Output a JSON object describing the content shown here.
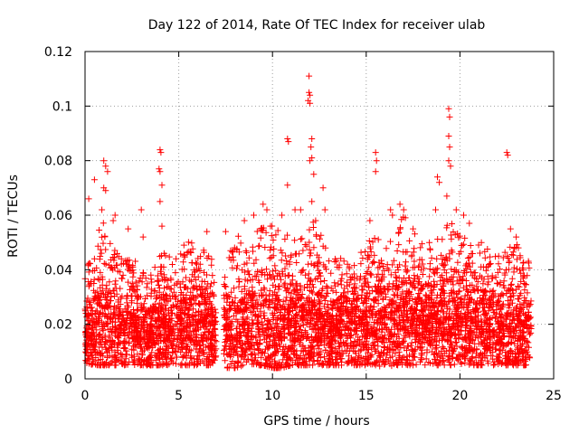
{
  "chart_data": {
    "type": "scatter",
    "title": "Day 122 of 2014, Rate Of TEC Index for receiver ulab",
    "xlabel": "GPS time / hours",
    "ylabel": "ROTI / TECUs",
    "xlim": [
      0,
      25
    ],
    "ylim": [
      0,
      0.12
    ],
    "xticks": [
      0,
      5,
      10,
      15,
      20,
      25
    ],
    "yticks": [
      0,
      0.02,
      0.04,
      0.06,
      0.08,
      0.1,
      0.12
    ],
    "xtick_labels": [
      "0",
      "5",
      "10",
      "15",
      "20",
      "25"
    ],
    "ytick_labels": [
      "0",
      "0.02",
      "0.04",
      "0.06",
      "0.08",
      "0.1",
      "0.12"
    ],
    "grid": true,
    "marker": "+",
    "color": "#ff0000",
    "data_gap_hours": [
      7.0,
      7.4
    ],
    "series": [
      {
        "name": "ROTI",
        "envelope": {
          "x": [
            0,
            0.5,
            1,
            1.5,
            2,
            2.5,
            3,
            3.5,
            4,
            4.5,
            5,
            5.5,
            6,
            6.5,
            7,
            7.5,
            8,
            8.5,
            9,
            9.5,
            10,
            10.5,
            11,
            11.5,
            12,
            12.5,
            13,
            13.5,
            14,
            14.5,
            15,
            15.5,
            16,
            16.5,
            17,
            17.5,
            18,
            18.5,
            19,
            19.5,
            20,
            20.5,
            21,
            21.5,
            22,
            22.5,
            23,
            23.5,
            23.8
          ],
          "lower": [
            0.006,
            0.005,
            0.005,
            0.005,
            0.005,
            0.005,
            0.005,
            0.005,
            0.005,
            0.005,
            0.005,
            0.005,
            0.005,
            0.005,
            0.005,
            0.004,
            0.004,
            0.005,
            0.005,
            0.005,
            0.004,
            0.004,
            0.005,
            0.005,
            0.005,
            0.005,
            0.005,
            0.005,
            0.005,
            0.005,
            0.005,
            0.005,
            0.004,
            0.005,
            0.005,
            0.005,
            0.005,
            0.005,
            0.005,
            0.005,
            0.005,
            0.005,
            0.005,
            0.005,
            0.005,
            0.005,
            0.005,
            0.005,
            0.006
          ],
          "upper": [
            0.045,
            0.05,
            0.06,
            0.05,
            0.045,
            0.045,
            0.042,
            0.04,
            0.05,
            0.045,
            0.05,
            0.052,
            0.05,
            0.05,
            0.04,
            0.05,
            0.055,
            0.05,
            0.052,
            0.06,
            0.06,
            0.055,
            0.055,
            0.055,
            0.06,
            0.055,
            0.045,
            0.045,
            0.045,
            0.045,
            0.05,
            0.052,
            0.05,
            0.055,
            0.06,
            0.055,
            0.05,
            0.05,
            0.055,
            0.06,
            0.055,
            0.05,
            0.05,
            0.05,
            0.045,
            0.048,
            0.05,
            0.045,
            0.045
          ],
          "median": [
            0.017,
            0.02,
            0.02,
            0.019,
            0.018,
            0.018,
            0.017,
            0.016,
            0.018,
            0.019,
            0.019,
            0.02,
            0.02,
            0.02,
            0.018,
            0.018,
            0.018,
            0.019,
            0.02,
            0.02,
            0.02,
            0.019,
            0.02,
            0.02,
            0.02,
            0.02,
            0.019,
            0.02,
            0.021,
            0.021,
            0.022,
            0.022,
            0.022,
            0.023,
            0.023,
            0.023,
            0.023,
            0.022,
            0.022,
            0.022,
            0.022,
            0.021,
            0.02,
            0.02,
            0.02,
            0.019,
            0.018,
            0.018,
            0.018
          ]
        },
        "spikes": [
          {
            "x": 0.2,
            "y": 0.066
          },
          {
            "x": 0.5,
            "y": 0.073
          },
          {
            "x": 1.0,
            "y": 0.08
          },
          {
            "x": 1.1,
            "y": 0.078
          },
          {
            "x": 1.2,
            "y": 0.076
          },
          {
            "x": 1.0,
            "y": 0.07
          },
          {
            "x": 1.1,
            "y": 0.069
          },
          {
            "x": 0.9,
            "y": 0.062
          },
          {
            "x": 1.6,
            "y": 0.06
          },
          {
            "x": 1.5,
            "y": 0.058
          },
          {
            "x": 2.3,
            "y": 0.055
          },
          {
            "x": 3.0,
            "y": 0.062
          },
          {
            "x": 3.1,
            "y": 0.052
          },
          {
            "x": 4.0,
            "y": 0.084
          },
          {
            "x": 4.05,
            "y": 0.083
          },
          {
            "x": 3.95,
            "y": 0.077
          },
          {
            "x": 4.0,
            "y": 0.076
          },
          {
            "x": 4.1,
            "y": 0.071
          },
          {
            "x": 4.0,
            "y": 0.065
          },
          {
            "x": 4.1,
            "y": 0.056
          },
          {
            "x": 6.5,
            "y": 0.054
          },
          {
            "x": 7.5,
            "y": 0.054
          },
          {
            "x": 8.5,
            "y": 0.058
          },
          {
            "x": 9.0,
            "y": 0.06
          },
          {
            "x": 9.5,
            "y": 0.064
          },
          {
            "x": 9.7,
            "y": 0.062
          },
          {
            "x": 10.5,
            "y": 0.06
          },
          {
            "x": 10.8,
            "y": 0.088
          },
          {
            "x": 10.85,
            "y": 0.087
          },
          {
            "x": 10.8,
            "y": 0.071
          },
          {
            "x": 11.2,
            "y": 0.062
          },
          {
            "x": 11.5,
            "y": 0.062
          },
          {
            "x": 11.95,
            "y": 0.111
          },
          {
            "x": 11.95,
            "y": 0.105
          },
          {
            "x": 12.0,
            "y": 0.104
          },
          {
            "x": 11.9,
            "y": 0.102
          },
          {
            "x": 12.0,
            "y": 0.101
          },
          {
            "x": 12.1,
            "y": 0.088
          },
          {
            "x": 12.05,
            "y": 0.085
          },
          {
            "x": 12.1,
            "y": 0.081
          },
          {
            "x": 12.0,
            "y": 0.08
          },
          {
            "x": 12.2,
            "y": 0.075
          },
          {
            "x": 12.1,
            "y": 0.065
          },
          {
            "x": 12.3,
            "y": 0.058
          },
          {
            "x": 12.7,
            "y": 0.07
          },
          {
            "x": 12.8,
            "y": 0.062
          },
          {
            "x": 15.5,
            "y": 0.083
          },
          {
            "x": 15.55,
            "y": 0.08
          },
          {
            "x": 15.5,
            "y": 0.076
          },
          {
            "x": 15.2,
            "y": 0.058
          },
          {
            "x": 16.3,
            "y": 0.062
          },
          {
            "x": 16.4,
            "y": 0.06
          },
          {
            "x": 16.8,
            "y": 0.064
          },
          {
            "x": 17.0,
            "y": 0.062
          },
          {
            "x": 17.5,
            "y": 0.055
          },
          {
            "x": 18.8,
            "y": 0.074
          },
          {
            "x": 18.9,
            "y": 0.072
          },
          {
            "x": 18.7,
            "y": 0.062
          },
          {
            "x": 19.4,
            "y": 0.099
          },
          {
            "x": 19.45,
            "y": 0.096
          },
          {
            "x": 19.4,
            "y": 0.089
          },
          {
            "x": 19.45,
            "y": 0.085
          },
          {
            "x": 19.4,
            "y": 0.08
          },
          {
            "x": 19.5,
            "y": 0.078
          },
          {
            "x": 19.3,
            "y": 0.067
          },
          {
            "x": 19.8,
            "y": 0.062
          },
          {
            "x": 20.2,
            "y": 0.06
          },
          {
            "x": 20.5,
            "y": 0.057
          },
          {
            "x": 22.5,
            "y": 0.083
          },
          {
            "x": 22.55,
            "y": 0.082
          },
          {
            "x": 22.7,
            "y": 0.055
          },
          {
            "x": 23.0,
            "y": 0.052
          }
        ]
      }
    ]
  }
}
